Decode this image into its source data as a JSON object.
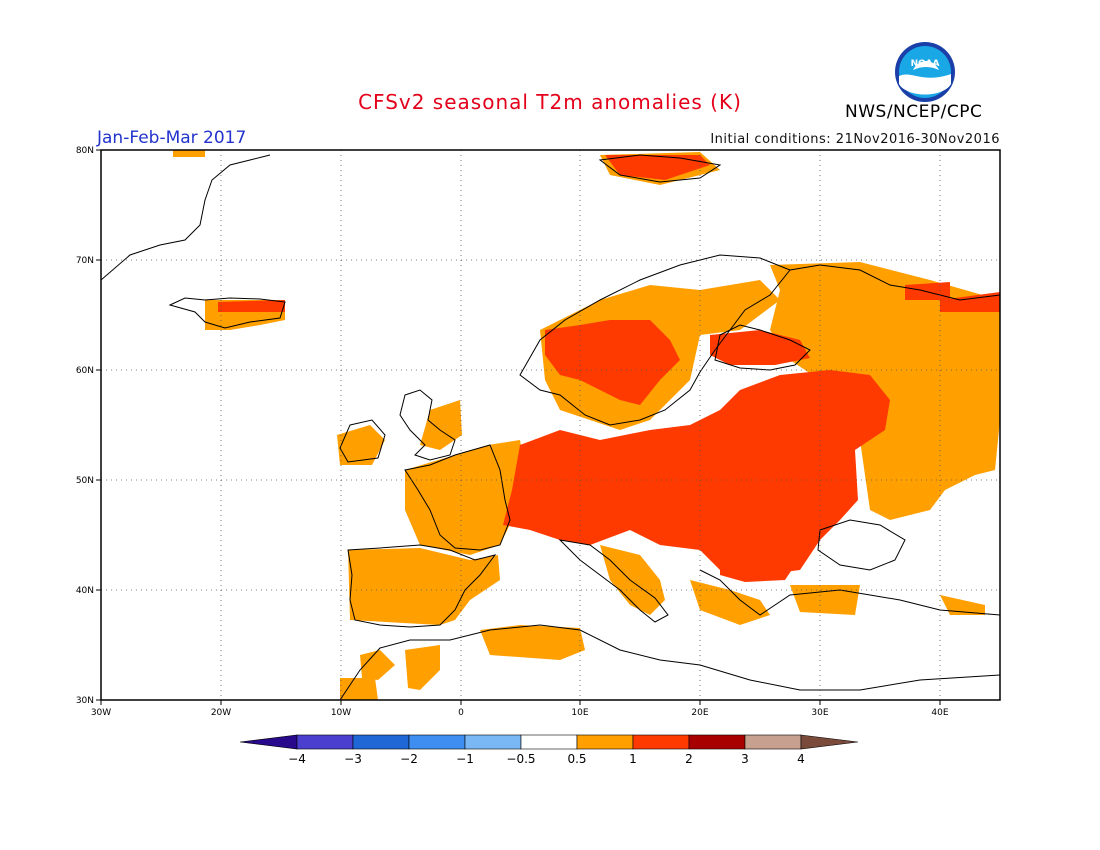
{
  "title": "CFSv2 seasonal T2m anomalies (K)",
  "period": "Jan-Feb-Mar 2017",
  "initial_conditions": "Initial conditions: 21Nov2016-30Nov2016",
  "agency": "NWS/NCEP/CPC",
  "logo_text": "NOAA",
  "map": {
    "lon_range": [
      -30,
      45
    ],
    "lat_range": [
      30,
      80
    ],
    "lat_ticks": [
      "80N",
      "70N",
      "60N",
      "50N",
      "40N",
      "30N"
    ],
    "lon_ticks": [
      "30W",
      "20W",
      "10W",
      "0",
      "10E",
      "20E",
      "30E",
      "40E"
    ]
  },
  "colorbar": {
    "colors": [
      "#2a0a8c",
      "#4b3fd0",
      "#1f66d6",
      "#3d8ef0",
      "#7ab8f5",
      "#ffffff",
      "#ff9f00",
      "#ff3a00",
      "#a80000",
      "#c8a090",
      "#7a4a3a"
    ],
    "labels": [
      "-4",
      "-3",
      "-2",
      "-1",
      "-0.5",
      "0.5",
      "1",
      "2",
      "3",
      "4"
    ]
  }
}
